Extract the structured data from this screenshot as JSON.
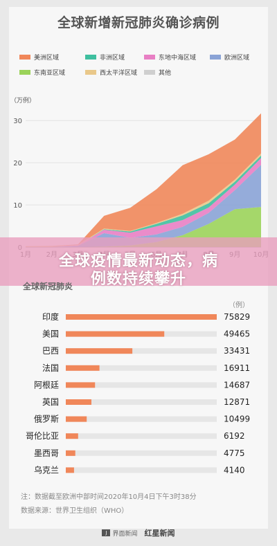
{
  "header": {
    "title": "全球新增新冠肺炎确诊病例"
  },
  "banner": {
    "line1": "全球疫情最新动态，病",
    "line2": "例数持续攀升"
  },
  "legend": {
    "items": [
      {
        "label": "美洲区域",
        "color": "#f0875a"
      },
      {
        "label": "非洲区域",
        "color": "#3fbf9f"
      },
      {
        "label": "东地中海区域",
        "color": "#e87fc4"
      },
      {
        "label": "欧洲区域",
        "color": "#8aa3d6"
      },
      {
        "label": "东南亚区域",
        "color": "#9bd35a"
      },
      {
        "label": "西太平洋区域",
        "color": "#e9c88a"
      },
      {
        "label": "其他",
        "color": "#cfcfcf"
      }
    ]
  },
  "stack_chart": {
    "unit_label": "（万例）",
    "y_ticks": [
      "0",
      "10",
      "20",
      "30"
    ],
    "x_ticks": [
      "1月",
      "2月",
      "3月",
      "4月",
      "5月",
      "6月",
      "7月",
      "8月",
      "9月",
      "10月"
    ]
  },
  "bar_section": {
    "subtitle": "全球新冠肺炎",
    "unit": "（例）"
  },
  "chart_data": [
    {
      "type": "area",
      "title": "全球新增新冠肺炎确诊病例",
      "ylabel": "（万例）",
      "x": [
        "1月",
        "2月",
        "3月",
        "4月",
        "5月",
        "6月",
        "7月",
        "8月",
        "9月",
        "10月"
      ],
      "ylim": [
        0,
        32
      ],
      "series": [
        {
          "name": "东南亚区域",
          "values": [
            0,
            0,
            0,
            0.1,
            0.4,
            1.2,
            2.8,
            5.5,
            9.0,
            9.5
          ]
        },
        {
          "name": "欧洲区域",
          "values": [
            0,
            0,
            0.3,
            3.2,
            1.8,
            1.8,
            2.0,
            2.6,
            4.5,
            10.0
          ]
        },
        {
          "name": "东地中海区域",
          "values": [
            0,
            0,
            0.1,
            0.8,
            1.2,
            1.9,
            1.6,
            1.3,
            1.3,
            1.6
          ]
        },
        {
          "name": "非洲区域",
          "values": [
            0,
            0,
            0,
            0.1,
            0.3,
            0.6,
            1.1,
            1.0,
            0.7,
            0.6
          ]
        },
        {
          "name": "西太平洋区域",
          "values": [
            0.2,
            0.3,
            0.1,
            0.2,
            0.1,
            0.2,
            0.4,
            0.6,
            0.5,
            0.5
          ]
        },
        {
          "name": "美洲区域",
          "values": [
            0,
            0,
            0.1,
            3.0,
            5.5,
            8.0,
            11.5,
            11.0,
            9.5,
            9.5
          ]
        }
      ]
    },
    {
      "type": "bar",
      "title": "全球新冠肺炎",
      "ylabel": "（例）",
      "categories": [
        "印度",
        "美国",
        "巴西",
        "法国",
        "阿根廷",
        "英国",
        "俄罗斯",
        "哥伦比亚",
        "墨西哥",
        "乌克兰"
      ],
      "values": [
        75829,
        49465,
        33431,
        16911,
        14687,
        12871,
        10499,
        6192,
        4775,
        4140
      ],
      "xlim": [
        0,
        75829
      ]
    }
  ],
  "notes": {
    "note1": "注：数据截至欧洲中部时间2020年10月4日下午3时38分",
    "note2": "数据来源：世界卫生组织（WHO）"
  },
  "footer": {
    "brand": "界面新闻",
    "brand_icon": "news-logo-icon",
    "script": "红星新闻"
  },
  "colors": {
    "bar": "#f0875a",
    "track": "#e6e6e6",
    "banner": "#e99ebe"
  }
}
